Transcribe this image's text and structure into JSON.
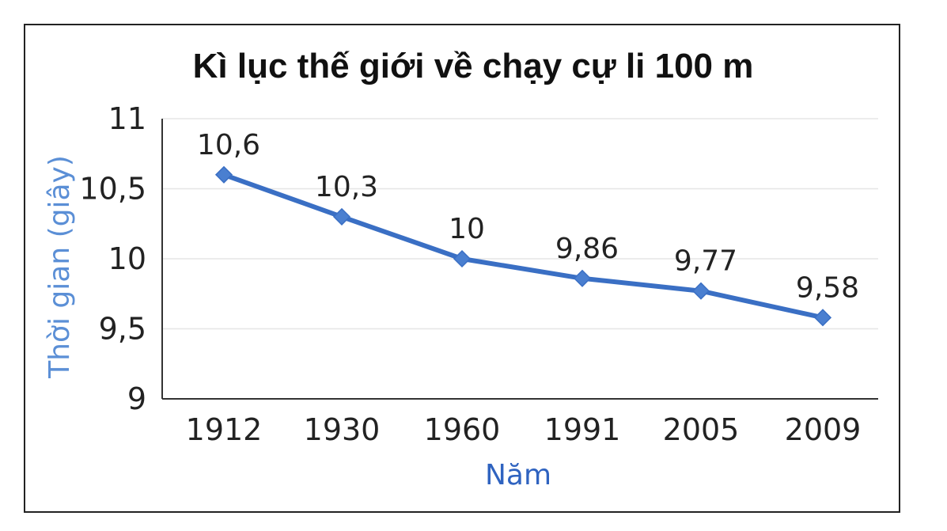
{
  "colors": {
    "series": "#3a6fc4",
    "marker": "#4a7fd0",
    "axis": "#333333",
    "grid": "#e6e6e6",
    "xlabel": "#2f63c0",
    "ylabel": "#5b8fd6"
  },
  "chart_data": {
    "type": "line",
    "title": "Kì lục thế giới về chạy cự li 100 m",
    "xlabel": "Năm",
    "ylabel": "Thời gian (giây)",
    "categories": [
      "1912",
      "1930",
      "1960",
      "1991",
      "2005",
      "2009"
    ],
    "values": [
      10.6,
      10.3,
      10,
      9.86,
      9.77,
      9.58
    ],
    "data_labels": [
      "10,6",
      "10,3",
      "10",
      "9,86",
      "9,77",
      "9,58"
    ],
    "ylim": [
      9,
      11
    ],
    "yticks": [
      {
        "value": 11,
        "label": "11"
      },
      {
        "value": 10.5,
        "label": "10,5"
      },
      {
        "value": 10,
        "label": "10"
      },
      {
        "value": 9.5,
        "label": "9,5"
      },
      {
        "value": 9,
        "label": "9"
      }
    ],
    "grid": true,
    "legend": "none"
  }
}
